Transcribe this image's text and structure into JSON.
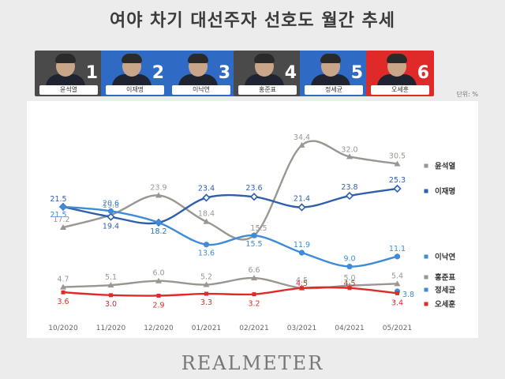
{
  "title": "여야 차기 대선주자 선호도 월간 추세",
  "unit": "단위: %",
  "brand": "REALMETER",
  "candidates": [
    {
      "name": "윤석열",
      "rank": "1",
      "color": "#4a4a4a"
    },
    {
      "name": "이재명",
      "rank": "2",
      "color": "#2f6ac4"
    },
    {
      "name": "이낙연",
      "rank": "3",
      "color": "#2f6ac4"
    },
    {
      "name": "홍준표",
      "rank": "4",
      "color": "#4a4a4a"
    },
    {
      "name": "정세균",
      "rank": "5",
      "color": "#2f6ac4"
    },
    {
      "name": "오세훈",
      "rank": "6",
      "color": "#e02a2a"
    }
  ],
  "chart_data": {
    "type": "line",
    "x": [
      "10/2020",
      "11/2020",
      "12/2020",
      "01/2021",
      "02/2021",
      "03/2021",
      "04/2021",
      "05/2021"
    ],
    "ylim": [
      0,
      40
    ],
    "grid": false,
    "legend": "right",
    "series": [
      {
        "name": "윤석열",
        "color": "#9a9690",
        "marker": "triangle",
        "values": [
          17.2,
          19.8,
          23.9,
          18.4,
          15.5,
          34.4,
          32.0,
          30.5
        ]
      },
      {
        "name": "이재명",
        "color": "#2e5fab",
        "marker": "diamond",
        "values": [
          21.5,
          19.4,
          18.2,
          23.4,
          23.6,
          21.4,
          23.8,
          25.3
        ]
      },
      {
        "name": "이낙연",
        "color": "#3d8bd9",
        "marker": "circle",
        "values": [
          21.5,
          20.6,
          18.2,
          13.6,
          15.5,
          11.9,
          9.0,
          11.1
        ]
      },
      {
        "name": "홍준표",
        "color": "#9a9690",
        "marker": "triangle",
        "values": [
          4.7,
          5.1,
          6.0,
          5.2,
          6.6,
          4.5,
          5.0,
          5.4
        ]
      },
      {
        "name": "정세균",
        "color": "#3d8bd9",
        "marker": "circle",
        "values": [
          null,
          null,
          null,
          null,
          null,
          null,
          null,
          3.8
        ]
      },
      {
        "name": "오세훈",
        "color": "#e02a2a",
        "marker": "square",
        "values": [
          3.6,
          3.0,
          2.9,
          3.3,
          3.2,
          4.5,
          4.5,
          3.4
        ]
      }
    ]
  }
}
